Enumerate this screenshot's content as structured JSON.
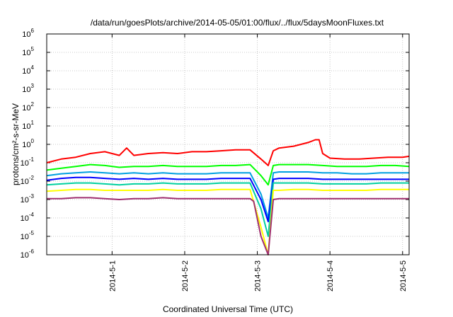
{
  "chart_data": {
    "type": "line",
    "title": "/data/run/goesPlots/archive/2014-05-05/01:00/flux/../flux/5daysMoonFluxes.txt",
    "xlabel": "Coordinated Universal Time (UTC)",
    "ylabel": "protons/cm²-s-sr-MeV",
    "y_scale": "log",
    "ylim": [
      1e-06,
      1000000.0
    ],
    "xlim": [
      0.1,
      5.09
    ],
    "x_unit": "days from 2014-04-30 00:00 UTC",
    "grid": true,
    "legend": "none",
    "y_ticks": [
      {
        "base": "10",
        "exp": "-6",
        "v": -6
      },
      {
        "base": "10",
        "exp": "-5",
        "v": -5
      },
      {
        "base": "10",
        "exp": "-4",
        "v": -4
      },
      {
        "base": "10",
        "exp": "-3",
        "v": -3
      },
      {
        "base": "10",
        "exp": "-2",
        "v": -2
      },
      {
        "base": "10",
        "exp": "-1",
        "v": -1
      },
      {
        "base": "10",
        "exp": "0",
        "v": 0
      },
      {
        "base": "10",
        "exp": "1",
        "v": 1
      },
      {
        "base": "10",
        "exp": "2",
        "v": 2
      },
      {
        "base": "10",
        "exp": "3",
        "v": 3
      },
      {
        "base": "10",
        "exp": "4",
        "v": 4
      },
      {
        "base": "10",
        "exp": "5",
        "v": 5
      },
      {
        "base": "10",
        "exp": "6",
        "v": 6
      }
    ],
    "x_ticks": [
      {
        "label": "2014-5-1",
        "x": 1.0
      },
      {
        "label": "2014-5-2",
        "x": 2.0
      },
      {
        "label": "2014-5-3",
        "x": 3.0
      },
      {
        "label": "2014-5-4",
        "x": 4.0
      },
      {
        "label": "2014-5-5",
        "x": 5.0
      }
    ],
    "series": [
      {
        "color": "#ff0000",
        "x": [
          0.1,
          0.3,
          0.5,
          0.7,
          0.9,
          1.1,
          1.2,
          1.3,
          1.5,
          1.7,
          1.9,
          2.1,
          2.3,
          2.5,
          2.7,
          2.9,
          3.05,
          3.15,
          3.22,
          3.3,
          3.5,
          3.7,
          3.8,
          3.85,
          3.9,
          4.0,
          4.2,
          4.4,
          4.6,
          4.8,
          5.0,
          5.09
        ],
        "y": [
          -1.0,
          -0.8,
          -0.7,
          -0.5,
          -0.4,
          -0.6,
          -0.2,
          -0.6,
          -0.5,
          -0.45,
          -0.5,
          -0.4,
          -0.4,
          -0.35,
          -0.3,
          -0.3,
          -0.8,
          -1.15,
          -0.35,
          -0.2,
          -0.1,
          0.1,
          0.25,
          0.25,
          -0.5,
          -0.75,
          -0.8,
          -0.8,
          -0.75,
          -0.7,
          -0.7,
          -0.65
        ]
      },
      {
        "color": "#00ff00",
        "x": [
          0.1,
          0.3,
          0.5,
          0.7,
          0.9,
          1.1,
          1.3,
          1.5,
          1.7,
          1.9,
          2.1,
          2.3,
          2.5,
          2.7,
          2.9,
          3.05,
          3.15,
          3.22,
          3.3,
          3.5,
          3.7,
          3.9,
          4.1,
          4.3,
          4.5,
          4.7,
          4.9,
          5.09
        ],
        "y": [
          -1.4,
          -1.3,
          -1.2,
          -1.1,
          -1.15,
          -1.25,
          -1.2,
          -1.2,
          -1.15,
          -1.2,
          -1.2,
          -1.2,
          -1.15,
          -1.15,
          -1.1,
          -1.7,
          -2.2,
          -1.15,
          -1.1,
          -1.1,
          -1.1,
          -1.15,
          -1.2,
          -1.2,
          -1.2,
          -1.15,
          -1.15,
          -1.2
        ]
      },
      {
        "color": "#00a0e0",
        "x": [
          0.1,
          0.3,
          0.5,
          0.7,
          0.9,
          1.1,
          1.3,
          1.5,
          1.7,
          1.9,
          2.1,
          2.3,
          2.5,
          2.7,
          2.9,
          3.05,
          3.15,
          3.22,
          3.3,
          3.5,
          3.7,
          3.9,
          4.1,
          4.3,
          4.5,
          4.7,
          4.9,
          5.09
        ],
        "y": [
          -1.7,
          -1.6,
          -1.55,
          -1.5,
          -1.55,
          -1.6,
          -1.55,
          -1.6,
          -1.55,
          -1.6,
          -1.6,
          -1.6,
          -1.55,
          -1.55,
          -1.55,
          -2.7,
          -4.0,
          -1.55,
          -1.5,
          -1.5,
          -1.5,
          -1.55,
          -1.55,
          -1.6,
          -1.6,
          -1.55,
          -1.55,
          -1.55
        ]
      },
      {
        "color": "#0000ff",
        "x": [
          0.1,
          0.3,
          0.5,
          0.7,
          0.9,
          1.1,
          1.3,
          1.5,
          1.7,
          1.9,
          2.1,
          2.3,
          2.5,
          2.7,
          2.9,
          3.05,
          3.15,
          3.22,
          3.3,
          3.5,
          3.7,
          3.9,
          4.1,
          4.3,
          4.5,
          4.7,
          4.9,
          5.09
        ],
        "y": [
          -1.95,
          -1.85,
          -1.8,
          -1.8,
          -1.85,
          -1.9,
          -1.85,
          -1.9,
          -1.85,
          -1.9,
          -1.9,
          -1.9,
          -1.85,
          -1.85,
          -1.85,
          -3.0,
          -4.2,
          -1.9,
          -1.85,
          -1.85,
          -1.85,
          -1.9,
          -1.9,
          -1.9,
          -1.9,
          -1.9,
          -1.9,
          -1.9
        ]
      },
      {
        "color": "#00d0a0",
        "x": [
          0.1,
          0.3,
          0.5,
          0.7,
          0.9,
          1.1,
          1.3,
          1.5,
          1.7,
          1.9,
          2.1,
          2.3,
          2.5,
          2.7,
          2.9,
          3.05,
          3.15,
          3.22,
          3.3,
          3.5,
          3.7,
          3.9,
          4.1,
          4.3,
          4.5,
          4.7,
          4.9,
          5.09
        ],
        "y": [
          -2.2,
          -2.15,
          -2.1,
          -2.1,
          -2.15,
          -2.2,
          -2.15,
          -2.15,
          -2.1,
          -2.15,
          -2.15,
          -2.15,
          -2.1,
          -2.1,
          -2.1,
          -3.5,
          -5.0,
          -2.1,
          -2.1,
          -2.1,
          -2.1,
          -2.15,
          -2.15,
          -2.15,
          -2.15,
          -2.1,
          -2.1,
          -2.1
        ]
      },
      {
        "color": "#ffff00",
        "x": [
          0.1,
          0.3,
          0.5,
          0.7,
          0.9,
          1.1,
          1.3,
          1.5,
          1.7,
          1.9,
          2.1,
          2.3,
          2.5,
          2.7,
          2.9,
          3.05,
          3.15,
          3.22,
          3.3,
          3.5,
          3.7,
          3.9,
          4.1,
          4.3,
          4.5,
          4.7,
          4.9,
          5.09
        ],
        "y": [
          -2.55,
          -2.5,
          -2.45,
          -2.45,
          -2.5,
          -2.5,
          -2.5,
          -2.5,
          -2.45,
          -2.5,
          -2.5,
          -2.5,
          -2.45,
          -2.45,
          -2.45,
          -4.5,
          -6.0,
          -2.5,
          -2.5,
          -2.45,
          -2.45,
          -2.5,
          -2.5,
          -2.5,
          -2.5,
          -2.45,
          -2.45,
          -2.45
        ]
      },
      {
        "color": "#a03070",
        "x": [
          0.1,
          0.3,
          0.5,
          0.7,
          0.9,
          1.1,
          1.3,
          1.5,
          1.7,
          1.9,
          2.1,
          2.3,
          2.5,
          2.7,
          2.9,
          2.95,
          3.05,
          3.15,
          3.22,
          3.3,
          3.5,
          3.7,
          3.9,
          4.1,
          4.3,
          4.5,
          4.7,
          4.9,
          5.09
        ],
        "y": [
          -2.95,
          -2.95,
          -2.9,
          -2.9,
          -2.95,
          -3.0,
          -2.95,
          -2.95,
          -2.9,
          -2.95,
          -2.95,
          -2.95,
          -2.95,
          -2.95,
          -2.95,
          -3.1,
          -5.0,
          -6.0,
          -3.0,
          -2.95,
          -2.95,
          -2.95,
          -2.95,
          -2.95,
          -2.95,
          -2.95,
          -2.95,
          -2.95,
          -2.95
        ]
      }
    ]
  }
}
